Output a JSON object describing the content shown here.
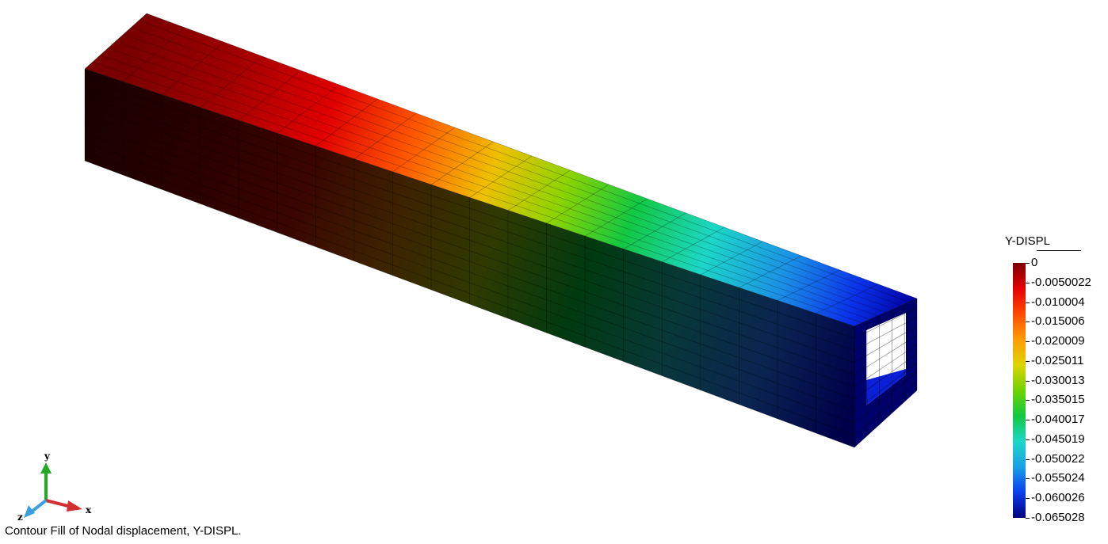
{
  "legend": {
    "title": "Y-DISPL",
    "labels": [
      "0",
      "-0.0050022",
      "-0.010004",
      "-0.015006",
      "-0.020009",
      "-0.025011",
      "-0.030013",
      "-0.035015",
      "-0.040017",
      "-0.045019",
      "-0.050022",
      "-0.055024",
      "-0.060026",
      "-0.065028"
    ]
  },
  "axes": {
    "x": "x",
    "y": "y",
    "z": "z"
  },
  "caption": "Contour Fill of Nodal displacement, Y-DISPL.",
  "colors": {
    "contour": [
      "#7a0000",
      "#e50000",
      "#ff4a00",
      "#ff9c00",
      "#ddd400",
      "#6fd200",
      "#12c842",
      "#1cd7c7",
      "#1ba0e6",
      "#0a3ff0",
      "#00007a"
    ],
    "x_axis": "#d03030",
    "y_axis": "#22aa22",
    "z_axis": "#3aa0e0"
  }
}
